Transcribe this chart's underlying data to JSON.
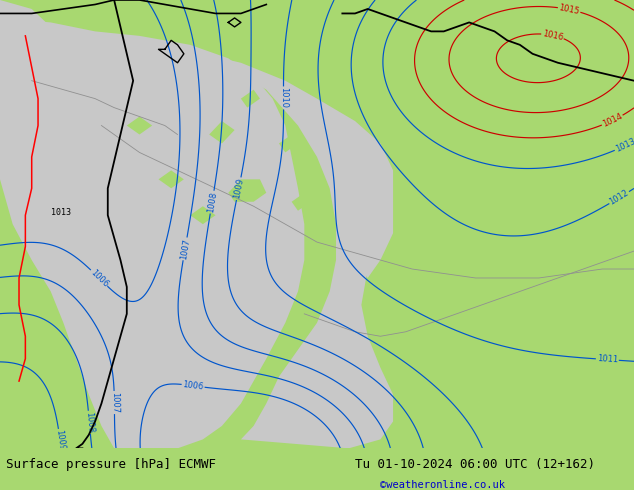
{
  "title_left": "Surface pressure [hPa] ECMWF",
  "title_right": "Tu 01-10-2024 06:00 UTC (12+162)",
  "credit": "©weatheronline.co.uk",
  "bg_color": "#a8d870",
  "sea_color": "#c8c8c8",
  "contour_color_blue": "#0055cc",
  "contour_color_red": "#cc0000",
  "contour_color_black": "#000000",
  "bottom_bar_color": "#b8dc90",
  "title_fontsize": 9,
  "credit_fontsize": 7.5,
  "credit_color": "#0000cc",
  "label_fontsize": 6
}
